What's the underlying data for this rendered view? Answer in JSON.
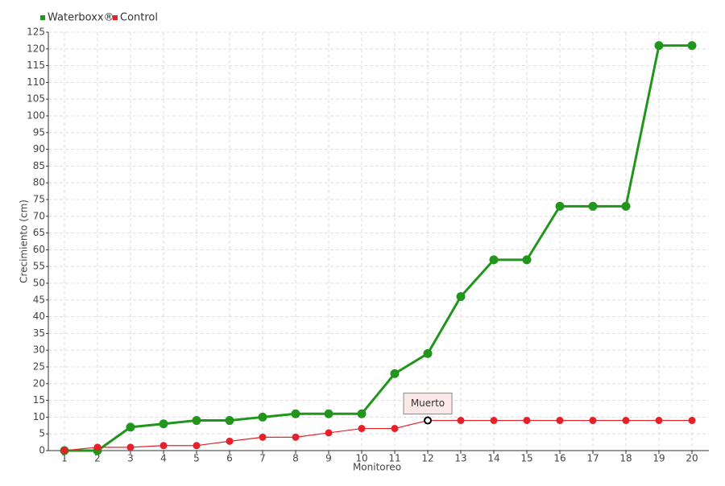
{
  "chart_data": {
    "type": "line",
    "x_label": "Monitoreo",
    "y_label": "Crecimiento (cm)",
    "categories": [
      "1",
      "2",
      "3",
      "4",
      "5",
      "6",
      "7",
      "8",
      "9",
      "10",
      "11",
      "12",
      "13",
      "14",
      "15",
      "16",
      "17",
      "18",
      "19",
      "20"
    ],
    "series": [
      {
        "name": "Waterboxx®",
        "color": "#22961c",
        "values": [
          0,
          0,
          7,
          8,
          9,
          9,
          10,
          11,
          11,
          11,
          23,
          29,
          46,
          57,
          57,
          73,
          73,
          73,
          121,
          121
        ]
      },
      {
        "name": "Control",
        "color": "#e8202a",
        "values": [
          0,
          1,
          1,
          1.5,
          1.5,
          2.8,
          4,
          4,
          5.3,
          6.6,
          6.6,
          9,
          9,
          9,
          9,
          9,
          9,
          9,
          9,
          9
        ]
      }
    ],
    "annotations": [
      {
        "text": "Muerto",
        "x": "12"
      }
    ],
    "ylim": [
      0,
      125
    ],
    "yticks": [
      0,
      5,
      10,
      15,
      20,
      25,
      30,
      35,
      40,
      45,
      50,
      55,
      60,
      65,
      70,
      75,
      80,
      85,
      90,
      95,
      100,
      105,
      110,
      115,
      120,
      125
    ],
    "grid": true,
    "legend": "top-left"
  }
}
